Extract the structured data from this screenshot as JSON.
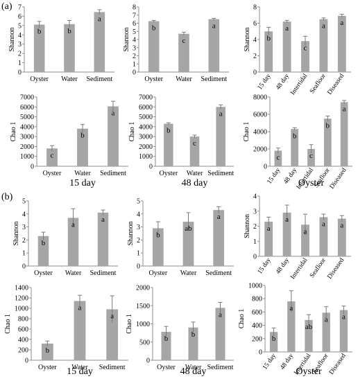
{
  "figure": {
    "panel_a_label": "(a)",
    "panel_b_label": "(b)"
  },
  "chart_data": [
    {
      "id": "a_s15",
      "type": "bar",
      "ylabel": "Shannon",
      "ylim": [
        0,
        7
      ],
      "yticks": [
        0,
        1,
        2,
        3,
        4,
        5,
        6,
        7
      ],
      "categories": [
        "Oyster",
        "Water",
        "Sediment"
      ],
      "values": [
        5.1,
        5.15,
        6.45
      ],
      "errors": [
        0.35,
        0.4,
        0.25
      ],
      "letters": [
        "b",
        "b",
        "a"
      ],
      "group_label": "",
      "rotate_x": false
    },
    {
      "id": "a_s48",
      "type": "bar",
      "ylabel": "Shannon",
      "ylim": [
        0,
        8
      ],
      "yticks": [
        0,
        1,
        2,
        3,
        4,
        5,
        6,
        7,
        8
      ],
      "categories": [
        "Oyster",
        "Water",
        "Sediment"
      ],
      "values": [
        6.25,
        4.7,
        6.5
      ],
      "errors": [
        0.1,
        0.2,
        0.1
      ],
      "letters": [
        "b",
        "c",
        "a"
      ],
      "group_label": "",
      "rotate_x": false
    },
    {
      "id": "a_sOy",
      "type": "bar",
      "ylabel": "Shannon",
      "ylim": [
        0,
        8
      ],
      "yticks": [
        0,
        2,
        4,
        6,
        8
      ],
      "categories": [
        "15 day",
        "48 day",
        "Intertidal",
        "Seafloor",
        "Diseased"
      ],
      "values": [
        5.0,
        6.2,
        3.8,
        6.5,
        6.9
      ],
      "errors": [
        0.5,
        0.15,
        0.6,
        0.15,
        0.2
      ],
      "letters": [
        "b",
        "a",
        "c",
        "a",
        "a"
      ],
      "group_label": "",
      "rotate_x": true
    },
    {
      "id": "a_c15",
      "type": "bar",
      "ylabel": "Chao 1",
      "ylim": [
        0,
        7000
      ],
      "yticks": [
        0,
        1000,
        2000,
        3000,
        4000,
        5000,
        6000,
        7000
      ],
      "categories": [
        "Oyster",
        "Water",
        "Sediment"
      ],
      "values": [
        1800,
        3800,
        6050
      ],
      "errors": [
        280,
        420,
        520
      ],
      "letters": [
        "c",
        "b",
        "a"
      ],
      "group_label": "15 day",
      "rotate_x": false
    },
    {
      "id": "a_c48",
      "type": "bar",
      "ylabel": "Chao 1",
      "ylim": [
        0,
        7000
      ],
      "yticks": [
        0,
        1000,
        2000,
        3000,
        4000,
        5000,
        6000,
        7000
      ],
      "categories": [
        "Oyster",
        "Water",
        "Sediment"
      ],
      "values": [
        4300,
        3000,
        6000
      ],
      "errors": [
        100,
        150,
        200
      ],
      "letters": [
        "b",
        "c",
        "a"
      ],
      "group_label": "48 day",
      "rotate_x": false
    },
    {
      "id": "a_cOy",
      "type": "bar",
      "ylabel": "Chao 1",
      "ylim": [
        0,
        8000
      ],
      "yticks": [
        0,
        2000,
        4000,
        6000,
        8000
      ],
      "categories": [
        "15 day",
        "48 day",
        "Intertidal",
        "Seafloor",
        "Diseased"
      ],
      "values": [
        1800,
        4300,
        2000,
        5500,
        7400
      ],
      "errors": [
        300,
        150,
        500,
        300,
        200
      ],
      "letters": [
        "c",
        "b",
        "c",
        "b",
        "a"
      ],
      "group_label": "Oyster",
      "rotate_x": true
    },
    {
      "id": "b_s15",
      "type": "bar",
      "ylabel": "Shannon",
      "ylim": [
        0,
        5
      ],
      "yticks": [
        0,
        1,
        2,
        3,
        4,
        5
      ],
      "categories": [
        "Oyster",
        "Water",
        "Sediment"
      ],
      "values": [
        2.3,
        3.7,
        4.1
      ],
      "errors": [
        0.3,
        0.7,
        0.2
      ],
      "letters": [
        "b",
        "a",
        "a"
      ],
      "group_label": "",
      "rotate_x": false
    },
    {
      "id": "b_s48",
      "type": "bar",
      "ylabel": "Shannon",
      "ylim": [
        0,
        5
      ],
      "yticks": [
        0,
        1,
        2,
        3,
        4,
        5
      ],
      "categories": [
        "Oyster",
        "Water",
        "Sediment"
      ],
      "values": [
        2.9,
        3.4,
        4.3
      ],
      "errors": [
        0.5,
        0.7,
        0.25
      ],
      "letters": [
        "b",
        "ab",
        "a"
      ],
      "group_label": "",
      "rotate_x": false
    },
    {
      "id": "b_sOy",
      "type": "bar",
      "ylabel": "Shannon",
      "ylim": [
        0,
        4
      ],
      "yticks": [
        0,
        1,
        2,
        3,
        4
      ],
      "categories": [
        "15 day",
        "48 day",
        "Intertidal",
        "Seafloor",
        "Diseased"
      ],
      "values": [
        2.3,
        2.9,
        2.1,
        2.6,
        2.5
      ],
      "errors": [
        0.3,
        0.5,
        0.7,
        0.2,
        0.2
      ],
      "letters": [
        "a",
        "a",
        "a",
        "a",
        "a"
      ],
      "group_label": "",
      "rotate_x": true
    },
    {
      "id": "b_c15",
      "type": "bar",
      "ylabel": "Chao 1",
      "ylim": [
        0,
        1400
      ],
      "yticks": [
        0,
        200,
        400,
        600,
        800,
        1000,
        1200,
        1400
      ],
      "categories": [
        "Oyster",
        "Water",
        "Sediment"
      ],
      "values": [
        320,
        1140,
        980
      ],
      "errors": [
        50,
        110,
        260
      ],
      "letters": [
        "b",
        "a",
        "a"
      ],
      "group_label": "15 day",
      "rotate_x": false
    },
    {
      "id": "b_c48",
      "type": "bar",
      "ylabel": "Chao 1",
      "ylim": [
        0,
        2000
      ],
      "yticks": [
        0,
        500,
        1000,
        1500,
        2000
      ],
      "categories": [
        "Oyster",
        "Water",
        "Sediment"
      ],
      "values": [
        780,
        900,
        1440
      ],
      "errors": [
        150,
        150,
        150
      ],
      "letters": [
        "b",
        "b",
        "a"
      ],
      "group_label": "48 day",
      "rotate_x": false
    },
    {
      "id": "b_cOy",
      "type": "bar",
      "ylabel": "Chao 1",
      "ylim": [
        0,
        1000
      ],
      "yticks": [
        0,
        200,
        400,
        600,
        800,
        1000
      ],
      "categories": [
        "15 day",
        "48 day",
        "Intertidal",
        "Seafloor",
        "Diseased"
      ],
      "values": [
        300,
        760,
        480,
        590,
        630
      ],
      "errors": [
        60,
        160,
        80,
        90,
        60
      ],
      "letters": [
        "b",
        "a",
        "ab",
        "a",
        "a"
      ],
      "group_label": "Oyster",
      "rotate_x": true
    }
  ]
}
